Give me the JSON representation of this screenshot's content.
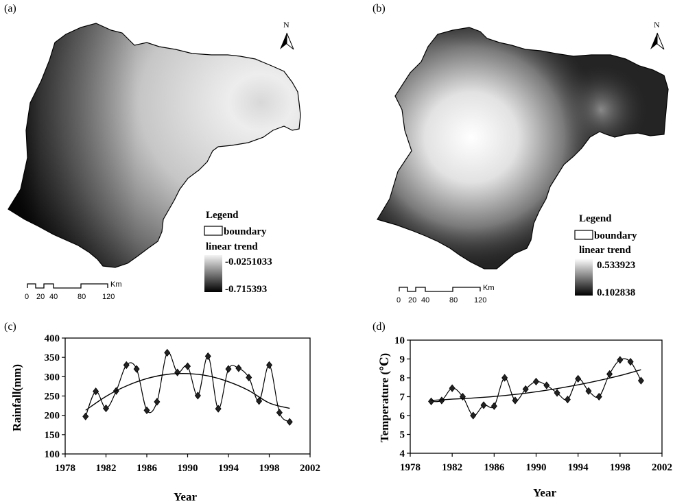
{
  "panels": {
    "a": "(a)",
    "b": "(b)",
    "c": "(c)",
    "d": "(d)"
  },
  "map_a": {
    "legend_title": "Legend",
    "boundary_label": "boundary",
    "trend_label": "linear trend",
    "max_value": "-0.0251033",
    "min_value": "-0.715393",
    "north": "N",
    "scale_unit": "Km",
    "scale_ticks": [
      "0",
      "20",
      "40",
      "80",
      "120"
    ]
  },
  "map_b": {
    "legend_title": "Legend",
    "boundary_label": "boundary",
    "trend_label": "linear trend",
    "max_value": "0.533923",
    "min_value": "0.102838",
    "north": "N",
    "scale_unit": "Km",
    "scale_ticks": [
      "0",
      "20",
      "40",
      "80",
      "120"
    ]
  },
  "colors": {
    "ink": "#000000",
    "light": "#efefef",
    "dark": "#0a0a0a"
  },
  "chart_data": [
    {
      "id": "c",
      "type": "line",
      "title": "",
      "xlabel": "Year",
      "ylabel": "Rainfall(mm)",
      "xlim": [
        1978,
        2002
      ],
      "ylim": [
        100,
        400
      ],
      "xticks": [
        1978,
        1982,
        1986,
        1990,
        1994,
        1998,
        2002
      ],
      "yticks": [
        100,
        150,
        200,
        250,
        300,
        350,
        400
      ],
      "series": [
        {
          "name": "Rainfall",
          "x": [
            1980,
            1981,
            1982,
            1983,
            1984,
            1985,
            1986,
            1987,
            1988,
            1989,
            1990,
            1991,
            1992,
            1993,
            1994,
            1995,
            1996,
            1997,
            1998,
            1999,
            2000
          ],
          "values": [
            197,
            262,
            218,
            263,
            330,
            320,
            213,
            235,
            362,
            311,
            327,
            251,
            353,
            217,
            320,
            322,
            298,
            237,
            330,
            207,
            183
          ]
        },
        {
          "name": "Trend",
          "x": [
            1980,
            1982,
            1984,
            1986,
            1988,
            1990,
            1992,
            1994,
            1996,
            1998,
            2000
          ],
          "values": [
            213,
            249,
            276,
            295,
            306,
            308,
            302,
            287,
            264,
            232,
            218
          ]
        }
      ]
    },
    {
      "id": "d",
      "type": "line",
      "title": "",
      "xlabel": "Year",
      "ylabel": "Temperature (℃)",
      "xlim": [
        1978,
        2002
      ],
      "ylim": [
        4,
        10
      ],
      "xticks": [
        1978,
        1982,
        1986,
        1990,
        1994,
        1998,
        2002
      ],
      "yticks": [
        4,
        5,
        6,
        7,
        8,
        9,
        10
      ],
      "series": [
        {
          "name": "Temperature",
          "x": [
            1980,
            1981,
            1982,
            1983,
            1984,
            1985,
            1986,
            1987,
            1988,
            1989,
            1990,
            1991,
            1992,
            1993,
            1994,
            1995,
            1996,
            1997,
            1998,
            1999,
            2000
          ],
          "values": [
            6.75,
            6.8,
            7.45,
            7.0,
            6.0,
            6.55,
            6.5,
            8.0,
            6.8,
            7.4,
            7.8,
            7.6,
            7.2,
            6.85,
            7.95,
            7.3,
            7.0,
            8.2,
            8.95,
            8.85,
            7.85
          ]
        },
        {
          "name": "Trend",
          "x": [
            1980,
            1982,
            1984,
            1986,
            1988,
            1990,
            1992,
            1994,
            1996,
            1998,
            2000
          ],
          "values": [
            6.8,
            6.87,
            6.93,
            7.01,
            7.12,
            7.26,
            7.43,
            7.63,
            7.86,
            8.12,
            8.43
          ]
        }
      ]
    }
  ]
}
